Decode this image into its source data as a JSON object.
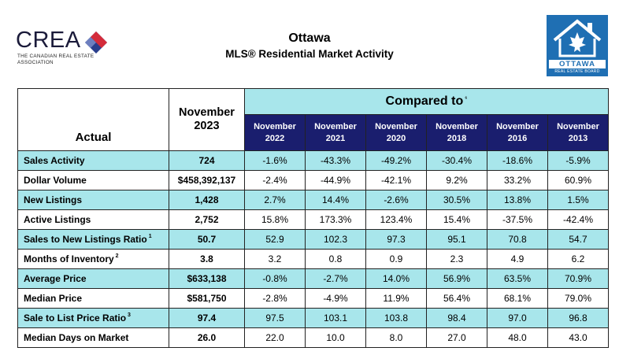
{
  "header": {
    "left_logo": {
      "word": "CREA",
      "subtitle": "The Canadian Real Estate Association"
    },
    "title": "Ottawa",
    "subtitle": "MLS® Residential Market Activity",
    "right_logo": {
      "name": "OTTAWA",
      "board": "REAL ESTATE BOARD"
    }
  },
  "table": {
    "actual_label": "Actual",
    "current_period_line1": "November",
    "current_period_line2": "2023",
    "compared_label": "Compared to",
    "compared_note": "⁶",
    "periods": [
      {
        "month": "November",
        "year": "2022"
      },
      {
        "month": "November",
        "year": "2021"
      },
      {
        "month": "November",
        "year": "2020"
      },
      {
        "month": "November",
        "year": "2018"
      },
      {
        "month": "November",
        "year": "2016"
      },
      {
        "month": "November",
        "year": "2013"
      }
    ],
    "rows": [
      {
        "label": "Sales Activity",
        "note": "",
        "actual": "724",
        "values": [
          "-1.6%",
          "-43.3%",
          "-49.2%",
          "-30.4%",
          "-18.6%",
          "-5.9%"
        ]
      },
      {
        "label": "Dollar Volume",
        "note": "",
        "actual": "$458,392,137",
        "values": [
          "-2.4%",
          "-44.9%",
          "-42.1%",
          "9.2%",
          "33.2%",
          "60.9%"
        ]
      },
      {
        "label": "New Listings",
        "note": "",
        "actual": "1,428",
        "values": [
          "2.7%",
          "14.4%",
          "-2.6%",
          "30.5%",
          "13.8%",
          "1.5%"
        ]
      },
      {
        "label": "Active Listings",
        "note": "",
        "actual": "2,752",
        "values": [
          "15.8%",
          "173.3%",
          "123.4%",
          "15.4%",
          "-37.5%",
          "-42.4%"
        ]
      },
      {
        "label": "Sales to New Listings Ratio",
        "note": "1",
        "actual": "50.7",
        "values": [
          "52.9",
          "102.3",
          "97.3",
          "95.1",
          "70.8",
          "54.7"
        ]
      },
      {
        "label": "Months of Inventory",
        "note": "2",
        "actual": "3.8",
        "values": [
          "3.2",
          "0.8",
          "0.9",
          "2.3",
          "4.9",
          "6.2"
        ]
      },
      {
        "label": "Average Price",
        "note": "",
        "actual": "$633,138",
        "values": [
          "-0.8%",
          "-2.7%",
          "14.0%",
          "56.9%",
          "63.5%",
          "70.9%"
        ]
      },
      {
        "label": "Median Price",
        "note": "",
        "actual": "$581,750",
        "values": [
          "-2.8%",
          "-4.9%",
          "11.9%",
          "56.4%",
          "68.1%",
          "79.0%"
        ]
      },
      {
        "label": "Sale to List Price Ratio",
        "note": "3",
        "actual": "97.4",
        "values": [
          "97.5",
          "103.1",
          "103.8",
          "98.4",
          "97.0",
          "96.8"
        ]
      },
      {
        "label": "Median Days on Market",
        "note": "",
        "actual": "26.0",
        "values": [
          "22.0",
          "10.0",
          "8.0",
          "27.0",
          "48.0",
          "43.0"
        ]
      }
    ]
  },
  "colors": {
    "highlight_row": "#a8e6eb",
    "period_header": "#1a1e6e",
    "ottawa_blue": "#1f6fb3",
    "crea_red": "#d42b3a",
    "crea_blue": "#2a3e8c"
  }
}
